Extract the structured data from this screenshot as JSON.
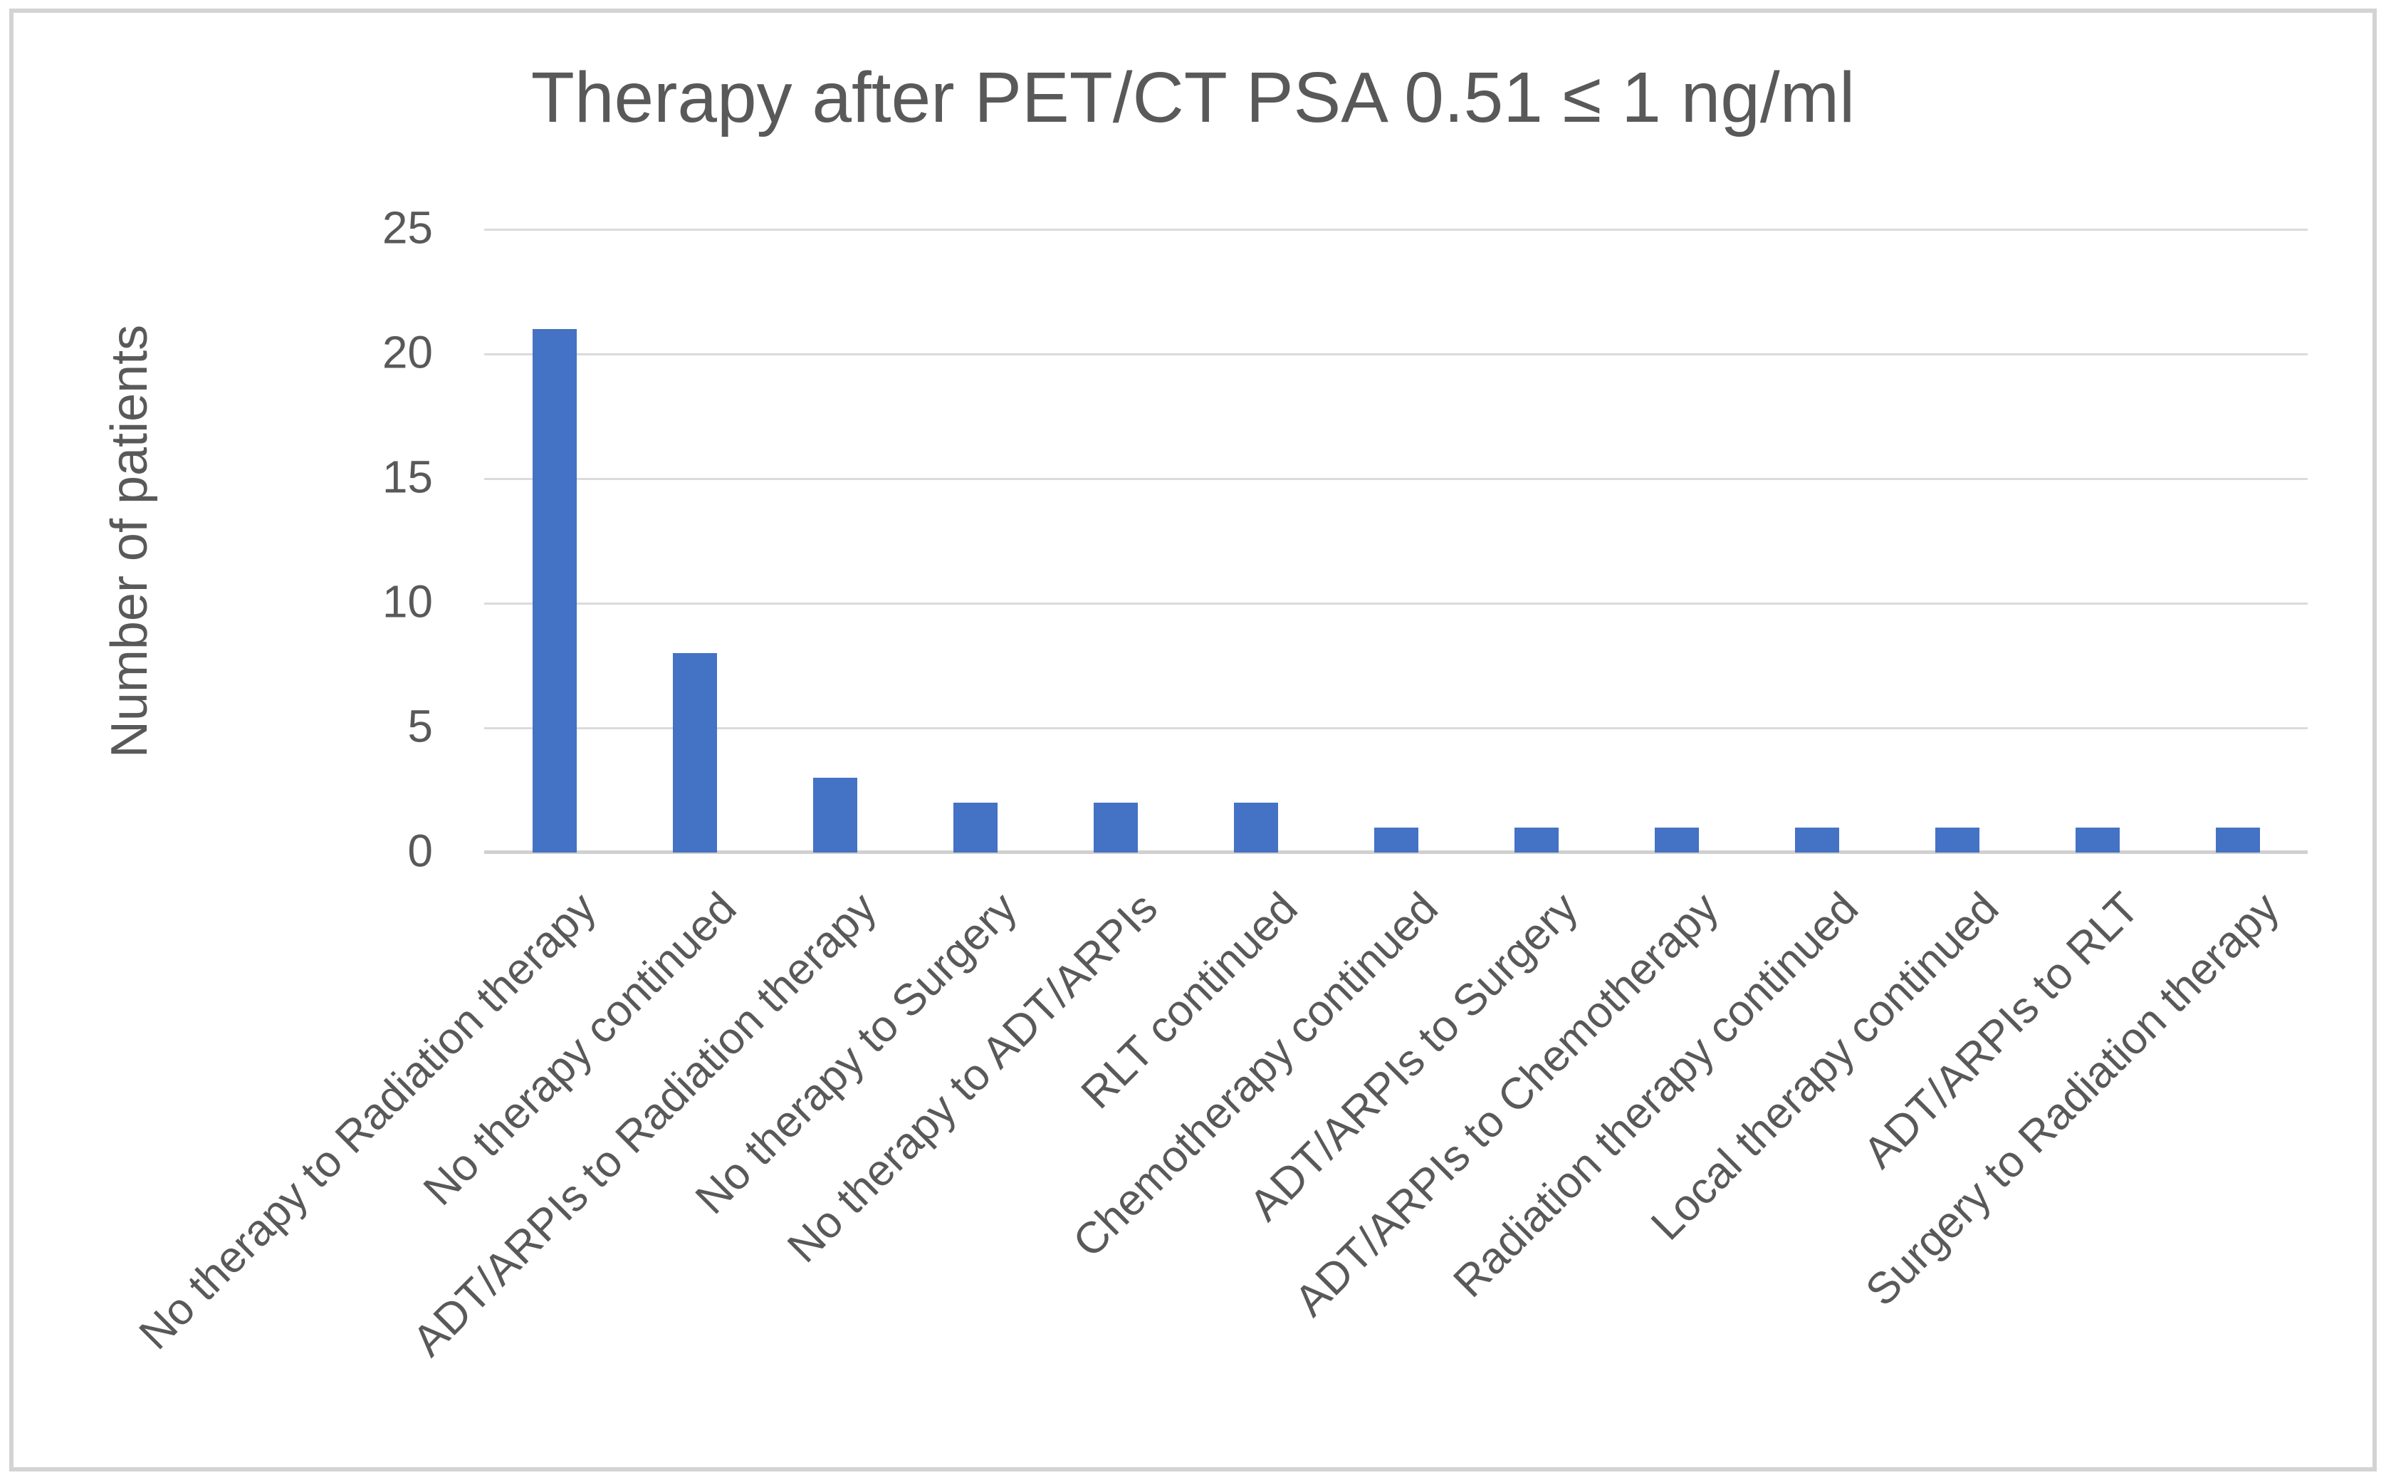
{
  "chart_data": {
    "type": "bar",
    "title": "Therapy after PET/CT PSA 0.51 ≤ 1 ng/ml",
    "xlabel": "",
    "ylabel": "Number of patients",
    "ylim": [
      0,
      25
    ],
    "yticks": [
      0,
      5,
      10,
      15,
      20,
      25
    ],
    "grid": true,
    "legend": false,
    "bar_color": "#4472C4",
    "gridline_color": "#DBDBDB",
    "axis_line_color": "#D0D0D0",
    "text_color": "#595959",
    "categories": [
      "No therapy to Radiation therapy",
      "No therapy continued",
      "ADT/ARPIs to Radiation therapy",
      "No therapy to Surgery",
      "No therapy to ADT/ARPIs",
      "RLT continued",
      "Chemotherapy continued",
      "ADT/ARPIs to Surgery",
      "ADT/ARPIs to Chemotherapy",
      "Radiation therapy continued",
      "Local therapy continued",
      "ADT/ARPIs to RLT",
      "Surgery to Radiation therapy"
    ],
    "values": [
      21,
      8,
      3,
      2,
      2,
      2,
      1,
      1,
      1,
      1,
      1,
      1,
      1
    ]
  }
}
